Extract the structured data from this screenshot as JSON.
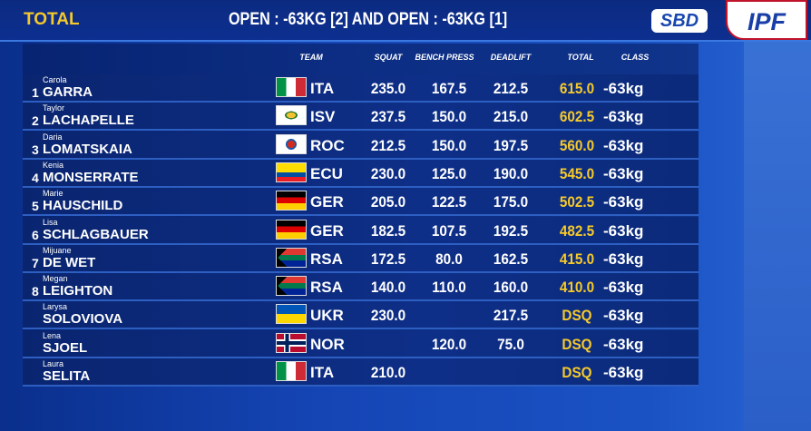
{
  "header": {
    "title": "TOTAL",
    "subtitle": "OPEN : -63KG [2] AND OPEN : -63KG [1]",
    "sponsor": "SBD",
    "federation": "IPF"
  },
  "table": {
    "columns": [
      "TEAM",
      "SQUAT",
      "BENCH PRESS",
      "DEADLIFT",
      "TOTAL",
      "CLASS"
    ],
    "rows": [
      {
        "rank": 1,
        "first": "Carola",
        "last": "GARRA",
        "team": "ITA",
        "squat": "235.0",
        "bench": "167.5",
        "deadlift": "212.5",
        "total": "615.0",
        "class": "-63kg"
      },
      {
        "rank": 2,
        "first": "Taylor",
        "last": "LACHAPELLE",
        "team": "ISV",
        "squat": "237.5",
        "bench": "150.0",
        "deadlift": "215.0",
        "total": "602.5",
        "class": "-63kg"
      },
      {
        "rank": 3,
        "first": "Daria",
        "last": "LOMATSKAIA",
        "team": "ROC",
        "squat": "212.5",
        "bench": "150.0",
        "deadlift": "197.5",
        "total": "560.0",
        "class": "-63kg"
      },
      {
        "rank": 4,
        "first": "Kenia",
        "last": "MONSERRATE",
        "team": "ECU",
        "squat": "230.0",
        "bench": "125.0",
        "deadlift": "190.0",
        "total": "545.0",
        "class": "-63kg"
      },
      {
        "rank": 5,
        "first": "Marie",
        "last": "HAUSCHILD",
        "team": "GER",
        "squat": "205.0",
        "bench": "122.5",
        "deadlift": "175.0",
        "total": "502.5",
        "class": "-63kg"
      },
      {
        "rank": 6,
        "first": "Lisa",
        "last": "SCHLAGBAUER",
        "team": "GER",
        "squat": "182.5",
        "bench": "107.5",
        "deadlift": "192.5",
        "total": "482.5",
        "class": "-63kg"
      },
      {
        "rank": 7,
        "first": "Mijuane",
        "last": "DE WET",
        "team": "RSA",
        "squat": "172.5",
        "bench": "80.0",
        "deadlift": "162.5",
        "total": "415.0",
        "class": "-63kg"
      },
      {
        "rank": 8,
        "first": "Megan",
        "last": "LEIGHTON",
        "team": "RSA",
        "squat": "140.0",
        "bench": "110.0",
        "deadlift": "160.0",
        "total": "410.0",
        "class": "-63kg"
      },
      {
        "first": "Larysa",
        "last": "SOLOVIOVA",
        "team": "UKR",
        "squat": "230.0",
        "deadlift": "217.5",
        "total": "DSQ",
        "class": "-63kg"
      },
      {
        "first": "Lena",
        "last": "SJOEL",
        "team": "NOR",
        "bench": "120.0",
        "deadlift": "75.0",
        "total": "DSQ",
        "class": "-63kg"
      },
      {
        "first": "Laura",
        "last": "SELITA",
        "team": "ITA",
        "squat": "210.0",
        "total": "DSQ",
        "class": "-63kg"
      }
    ]
  }
}
